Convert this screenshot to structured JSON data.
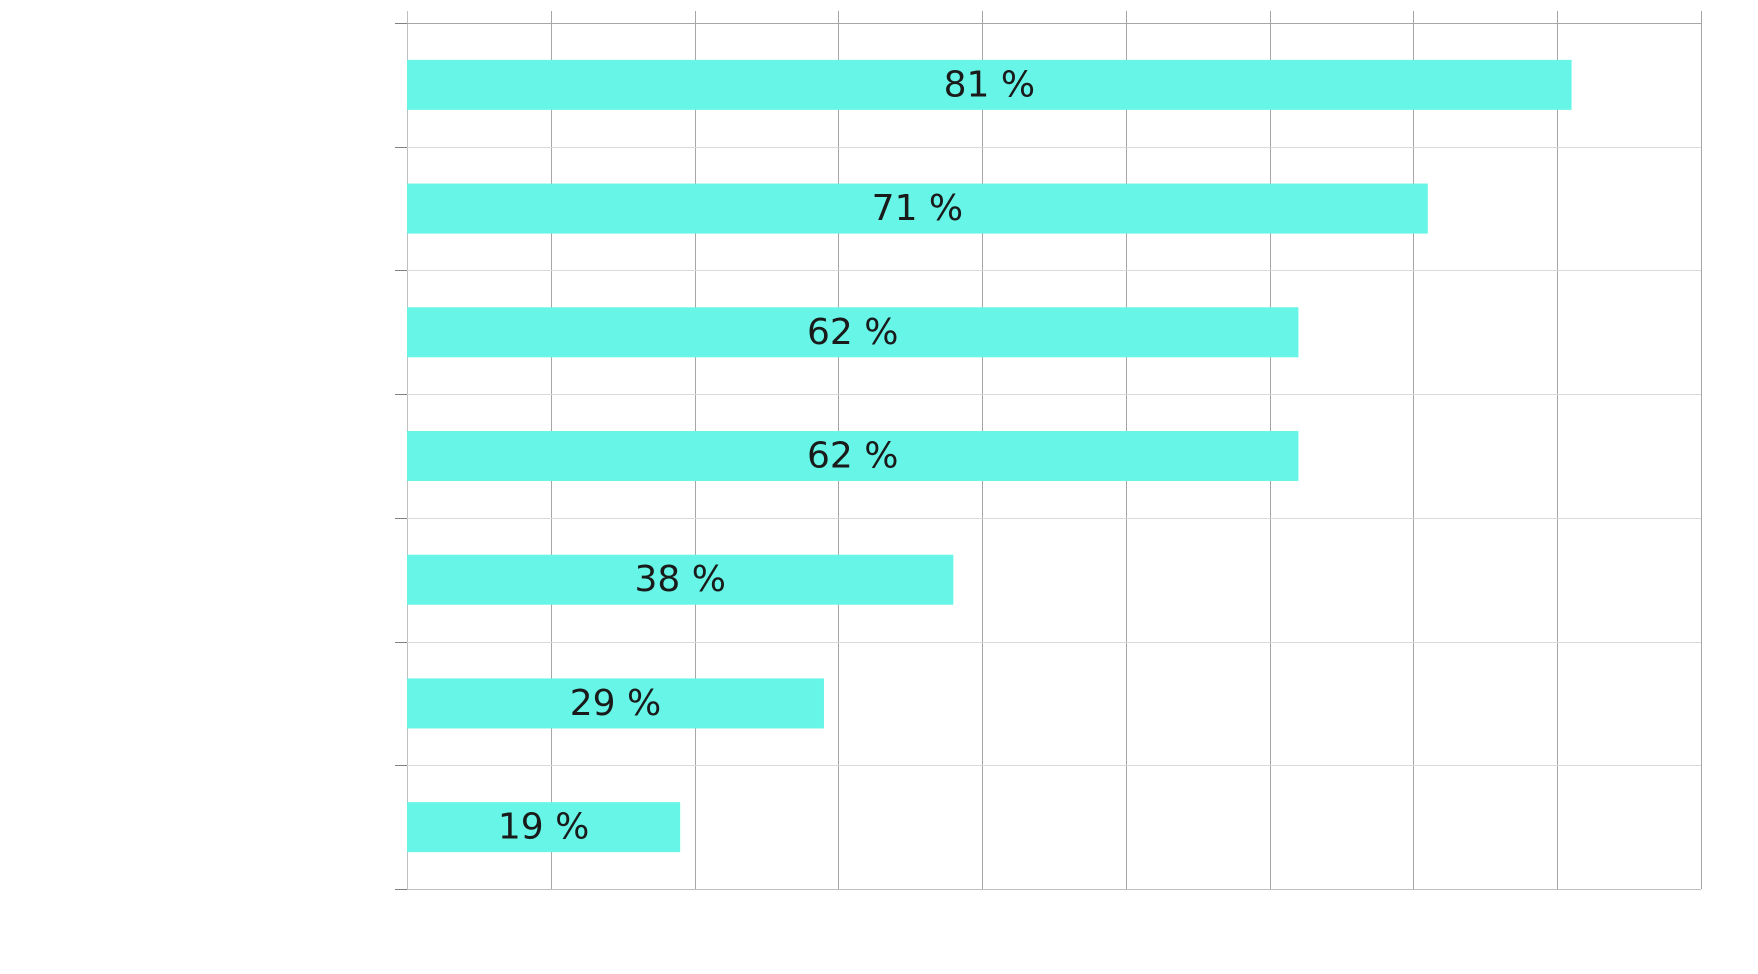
{
  "chart_data": {
    "type": "bar",
    "orientation": "horizontal",
    "values": [
      81,
      71,
      62,
      62,
      38,
      29,
      19
    ],
    "data_labels": [
      "81 %",
      "71 %",
      "62 %",
      "62 %",
      "38 %",
      "29 %",
      "19 %"
    ],
    "xlim": [
      0,
      90
    ],
    "x_major_step": 10,
    "grid": true,
    "legend": "none",
    "bar_color": "#66F5E6"
  }
}
